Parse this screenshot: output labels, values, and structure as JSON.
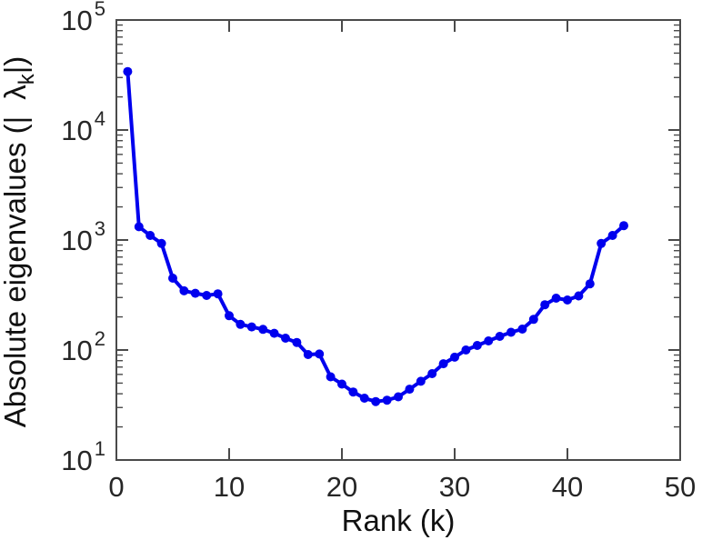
{
  "chart_data": {
    "type": "line",
    "title": "",
    "xlabel": "Rank (k)",
    "ylabel": "Absolute eigenvalues (|λₖ|)",
    "ylabel_parts": {
      "prefix": "Absolute eigenvalues (|",
      "symbol": "λ",
      "subscript": "k",
      "suffix": "|)"
    },
    "scale_y": "log",
    "grid": false,
    "legend": null,
    "line_color": "#0000EE",
    "marker": "filled-circle",
    "axis_color": "#4a4a4a",
    "xlim": [
      0,
      50
    ],
    "ylim_exp": [
      1,
      5
    ],
    "x_ticks": [
      0,
      10,
      20,
      30,
      40,
      50
    ],
    "y_tick_base": "10",
    "y_tick_exponents": [
      1,
      2,
      3,
      4,
      5
    ],
    "x": [
      1,
      2,
      3,
      4,
      5,
      6,
      7,
      8,
      9,
      10,
      11,
      12,
      13,
      14,
      15,
      16,
      17,
      18,
      19,
      20,
      21,
      22,
      23,
      24,
      25,
      26,
      27,
      28,
      29,
      30,
      31,
      32,
      33,
      34,
      35,
      36,
      37,
      38,
      39,
      40,
      41,
      42,
      43,
      44,
      45
    ],
    "values": [
      34000,
      1320,
      1100,
      930,
      450,
      345,
      328,
      313,
      324,
      205,
      171,
      162,
      154,
      142,
      128,
      117,
      91,
      92,
      57,
      49,
      41.5,
      36.5,
      34,
      35,
      37.5,
      44,
      52,
      61,
      75,
      86,
      100,
      110,
      121,
      133,
      145,
      155,
      190,
      258,
      296,
      285,
      310,
      400,
      930,
      1100,
      1350
    ]
  }
}
